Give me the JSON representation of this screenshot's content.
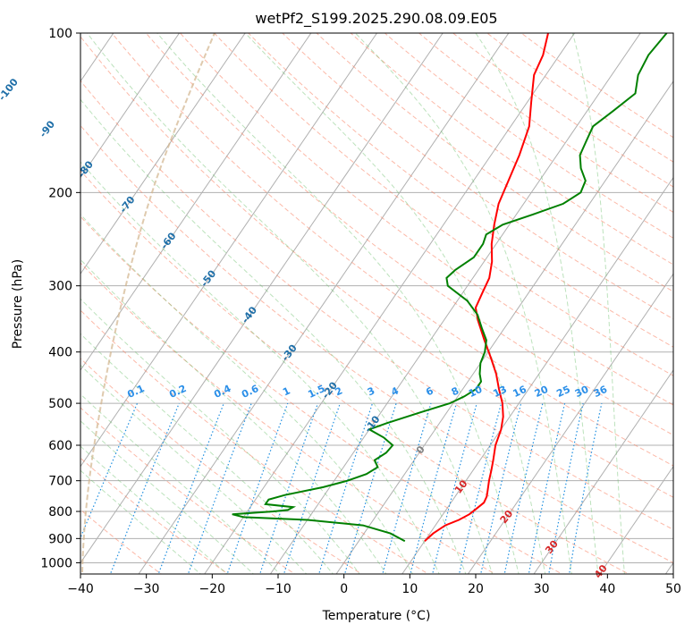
{
  "chart_data": {
    "type": "line",
    "title": "wetPf2_S199.2025.290.08.09.E05",
    "xlabel": "Temperature (°C)",
    "ylabel": "Pressure (hPa)",
    "xlim": [
      -40,
      50
    ],
    "ylim": [
      1050,
      100
    ],
    "x_ticks": [
      -40,
      -30,
      -20,
      -10,
      0,
      10,
      20,
      30,
      40,
      50
    ],
    "y_ticks": [
      100,
      200,
      300,
      400,
      500,
      600,
      700,
      800,
      900,
      1000
    ],
    "skew_deg_per_decade_log_p": 55,
    "isotherm_labels": [
      {
        "t": -100,
        "p": 128,
        "text": "-100"
      },
      {
        "t": -90,
        "p": 152,
        "text": "-90"
      },
      {
        "t": -80,
        "p": 181,
        "text": "-80"
      },
      {
        "t": -70,
        "p": 211,
        "text": "-70"
      },
      {
        "t": -60,
        "p": 247,
        "text": "-60"
      },
      {
        "t": -50,
        "p": 291,
        "text": "-50"
      },
      {
        "t": -40,
        "p": 341,
        "text": "-40"
      },
      {
        "t": -30,
        "p": 402,
        "text": "-30"
      },
      {
        "t": -20,
        "p": 473,
        "text": "-20"
      },
      {
        "t": -10,
        "p": 548,
        "text": "-10"
      },
      {
        "t": 0,
        "p": 613,
        "text": "0"
      },
      {
        "t": 10,
        "p": 720,
        "text": "10"
      },
      {
        "t": 20,
        "p": 820,
        "text": "20"
      },
      {
        "t": 30,
        "p": 935,
        "text": "30"
      },
      {
        "t": 40,
        "p": 1040,
        "text": "40"
      }
    ],
    "mixing_ratio_labels": [
      "0.1",
      "0.2",
      "0.4",
      "0.6",
      "1",
      "1.5",
      "2",
      "3",
      "4",
      "6",
      "8",
      "10",
      "13",
      "16",
      "20",
      "25",
      "30",
      "36"
    ],
    "mixing_ratio_values": [
      0.1,
      0.2,
      0.4,
      0.6,
      1,
      1.5,
      2,
      3,
      4,
      6,
      8,
      10,
      13,
      16,
      20,
      25,
      30,
      36
    ],
    "mixing_ratio_label_pressure": 500,
    "series": [
      {
        "name": "temperature",
        "color": "#ff0000",
        "points": [
          [
            910,
            10
          ],
          [
            880,
            10.5
          ],
          [
            850,
            11.5
          ],
          [
            830,
            13
          ],
          [
            810,
            14
          ],
          [
            790,
            14.5
          ],
          [
            770,
            15
          ],
          [
            750,
            14.8
          ],
          [
            730,
            14.3
          ],
          [
            700,
            13.5
          ],
          [
            670,
            12.8
          ],
          [
            640,
            12
          ],
          [
            600,
            10.8
          ],
          [
            560,
            10
          ],
          [
            530,
            9
          ],
          [
            500,
            7.5
          ],
          [
            470,
            5.5
          ],
          [
            440,
            3.5
          ],
          [
            410,
            1
          ],
          [
            380,
            -1.8
          ],
          [
            350,
            -4.7
          ],
          [
            330,
            -6.5
          ],
          [
            310,
            -7
          ],
          [
            290,
            -7.5
          ],
          [
            270,
            -8.8
          ],
          [
            250,
            -10.7
          ],
          [
            230,
            -12.3
          ],
          [
            210,
            -13.8
          ],
          [
            190,
            -14.7
          ],
          [
            170,
            -15.7
          ],
          [
            150,
            -17.2
          ],
          [
            135,
            -19.4
          ],
          [
            120,
            -21.8
          ],
          [
            110,
            -22.5
          ],
          [
            100,
            -24
          ]
        ]
      },
      {
        "name": "dewpoint",
        "color": "#008000",
        "points": [
          [
            910,
            7
          ],
          [
            880,
            4
          ],
          [
            850,
            -1
          ],
          [
            830,
            -10
          ],
          [
            820,
            -20
          ],
          [
            810,
            -22
          ],
          [
            800,
            -16
          ],
          [
            795,
            -14
          ],
          [
            785,
            -13.5
          ],
          [
            775,
            -18
          ],
          [
            760,
            -18
          ],
          [
            745,
            -16
          ],
          [
            720,
            -11
          ],
          [
            700,
            -8
          ],
          [
            680,
            -5.8
          ],
          [
            660,
            -4.8
          ],
          [
            640,
            -6
          ],
          [
            620,
            -5
          ],
          [
            600,
            -4.8
          ],
          [
            580,
            -7
          ],
          [
            560,
            -10
          ],
          [
            545,
            -8
          ],
          [
            520,
            -4
          ],
          [
            500,
            -0.5
          ],
          [
            485,
            1
          ],
          [
            470,
            2
          ],
          [
            455,
            2
          ],
          [
            440,
            1
          ],
          [
            420,
            0
          ],
          [
            400,
            -0.5
          ],
          [
            380,
            -1.5
          ],
          [
            360,
            -3.5
          ],
          [
            340,
            -5.5
          ],
          [
            320,
            -8.5
          ],
          [
            300,
            -13
          ],
          [
            290,
            -14
          ],
          [
            280,
            -13.5
          ],
          [
            265,
            -12
          ],
          [
            250,
            -12
          ],
          [
            240,
            -12.5
          ],
          [
            230,
            -11
          ],
          [
            220,
            -7.5
          ],
          [
            210,
            -4
          ],
          [
            200,
            -2.5
          ],
          [
            190,
            -3
          ],
          [
            180,
            -5
          ],
          [
            170,
            -6.5
          ],
          [
            160,
            -7
          ],
          [
            150,
            -7.5
          ],
          [
            140,
            -6
          ],
          [
            130,
            -4.5
          ],
          [
            120,
            -6
          ],
          [
            110,
            -6.5
          ],
          [
            100,
            -6
          ]
        ]
      }
    ],
    "colors": {
      "grid": "#b0b0b0",
      "isotherm_label": "#1f6fa8",
      "dry_adiabat": "#fa8060",
      "moist_adiabat": "#6bbf6b",
      "mixing_ratio": "#1f8fe0",
      "mixing_label": "#2b8fe8",
      "freezing_label": "#808080",
      "warm_label": "#d62728",
      "curve_left": "#d2b48c"
    }
  }
}
